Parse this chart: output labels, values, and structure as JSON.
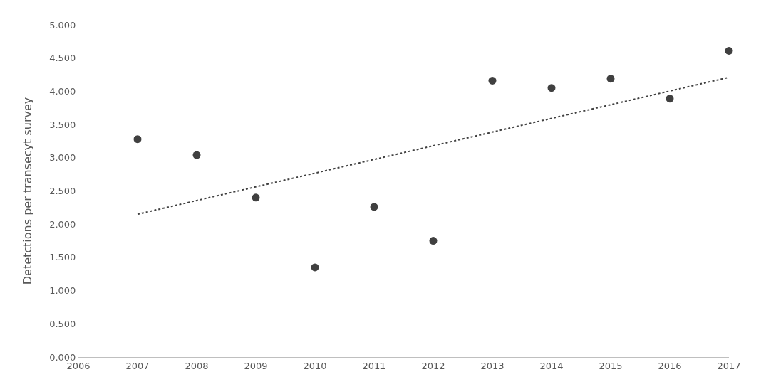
{
  "chart_data": {
    "type": "scatter",
    "ylabel": "Detetctions per transecyt survey",
    "x": [
      2007,
      2008,
      2009,
      2010,
      2011,
      2012,
      2013,
      2014,
      2015,
      2016,
      2017
    ],
    "series": [
      {
        "color": "#404040",
        "marker": "circle",
        "values": [
          3.28,
          3.04,
          2.4,
          1.35,
          2.26,
          1.75,
          4.16,
          4.05,
          4.19,
          3.89,
          4.61
        ]
      },
      {
        "type": "line",
        "color": "#404040",
        "line_style": "dotted",
        "marker": "none",
        "x": [
          2007,
          2017
        ],
        "values": [
          2.15,
          4.21
        ]
      }
    ],
    "xlim": [
      2006,
      2017
    ],
    "xticks": [
      2006,
      2007,
      2008,
      2009,
      2010,
      2011,
      2012,
      2013,
      2014,
      2015,
      2016,
      2017
    ],
    "ylim": [
      0,
      5
    ],
    "yticks": [
      {
        "value": 0,
        "label": "0.000"
      },
      {
        "value": 0.5,
        "label": "0.500"
      },
      {
        "value": 1,
        "label": "1.000"
      },
      {
        "value": 1.5,
        "label": "1.500"
      },
      {
        "value": 2,
        "label": "2.000"
      },
      {
        "value": 2.5,
        "label": "2.500"
      },
      {
        "value": 3,
        "label": "3.000"
      },
      {
        "value": 3.5,
        "label": "3.500"
      },
      {
        "value": 4,
        "label": "4.000"
      },
      {
        "value": 4.5,
        "label": "4.500"
      },
      {
        "value": 5,
        "label": "5.000"
      }
    ],
    "grid": false
  }
}
